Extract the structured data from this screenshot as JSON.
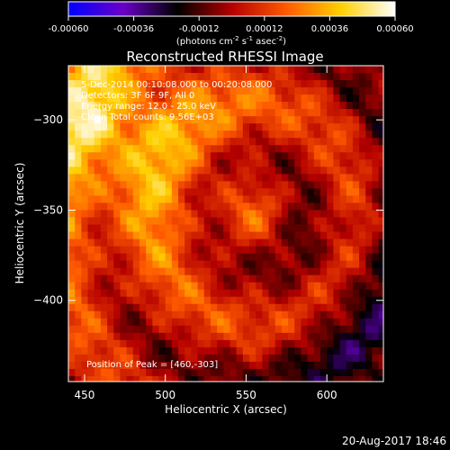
{
  "colorbar": {
    "ticks": [
      "-0.00060",
      "-0.00036",
      "-0.00012",
      "0.00012",
      "0.00036",
      "0.00060"
    ],
    "tick_values": [
      -0.0006,
      -0.00036,
      -0.00012,
      0.00012,
      0.00036,
      0.0006
    ],
    "range": [
      -0.0006,
      0.0006
    ],
    "unit_parts": {
      "pre": "(photons cm",
      "exp1": "-2",
      "mid": " s",
      "exp2": "-1",
      "mid2": " asec",
      "exp3": "-2",
      "post": ")"
    },
    "colors": [
      "#0000ff",
      "#6a00c8",
      "#000000",
      "#b40000",
      "#ff5a00",
      "#ffd000",
      "#ffffff"
    ]
  },
  "chart_data": {
    "type": "heatmap",
    "title": "Reconstructed RHESSI Image",
    "xlabel": "Heliocentric X (arcsec)",
    "ylabel": "Heliocentric Y (arcsec)",
    "xlim": [
      440,
      635
    ],
    "ylim": [
      -445,
      -270
    ],
    "xticks": [
      450,
      500,
      550,
      600
    ],
    "yticks": [
      -300,
      -350,
      -400
    ],
    "annotations": [
      "5-Dec-2014 00:10:08.000 to 00:20:08.000",
      "Detectors: 3F 6F 9F, All 0",
      "Energy range: 12.0 - 25.0 keV",
      "Clean     Total counts: 9.56E+03"
    ],
    "peak_label": "Position of Peak = [460,-303]",
    "peak": [
      460,
      -303
    ],
    "rings_center": [
      555,
      -352
    ],
    "rings_radius": [
      18,
      38,
      60
    ]
  },
  "footer": {
    "timestamp": "20-Aug-2017 18:46"
  }
}
